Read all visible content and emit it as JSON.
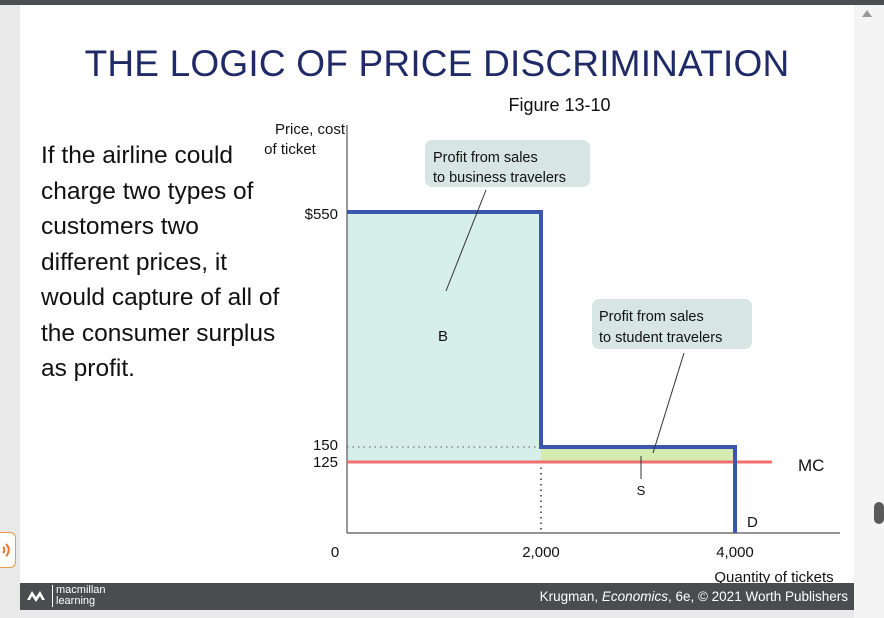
{
  "slide": {
    "title": "THE LOGIC OF PRICE DISCRIMINATION",
    "figure_label": "Figure 13-10",
    "body_text": "If the airline could charge two types of customers two different prices, it would capture of all of the consumer surplus as profit."
  },
  "chart_data": {
    "type": "area",
    "ylabel": "Price, cost of ticket",
    "xlabel": "Quantity of tickets",
    "y_ticks": [
      "$550",
      "150",
      "125"
    ],
    "x_ticks": [
      "0",
      "2,000",
      "4,000"
    ],
    "demand_steps": [
      {
        "quantity_from": 0,
        "quantity_to": 2000,
        "price": 550
      },
      {
        "quantity_from": 2000,
        "quantity_to": 4000,
        "price": 150
      }
    ],
    "marginal_cost": 125,
    "regions": {
      "business": {
        "label": "B",
        "price": 550,
        "quantity_from": 0,
        "quantity_to": 2000
      },
      "student": {
        "label": "S",
        "price": 150,
        "quantity_from": 2000,
        "quantity_to": 4000
      }
    },
    "annotations": {
      "business_callout": [
        "Profit from sales",
        "to business travelers"
      ],
      "student_callout": [
        "Profit from sales",
        "to student travelers"
      ],
      "mc_label": "MC",
      "demand_label": "D"
    },
    "colors": {
      "demand": "#3a57ad",
      "mc": "#f07070",
      "business_fill": "#d7efe9",
      "student_fill": "#d5ebb0",
      "callout_bg": "#d7e6e2"
    }
  },
  "footer": {
    "brand_line1": "macmillan",
    "brand_line2": "learning",
    "credit_prefix": "Krugman, ",
    "credit_italic": "Economics",
    "credit_suffix": ", 6e, © 2021 Worth Publishers"
  }
}
